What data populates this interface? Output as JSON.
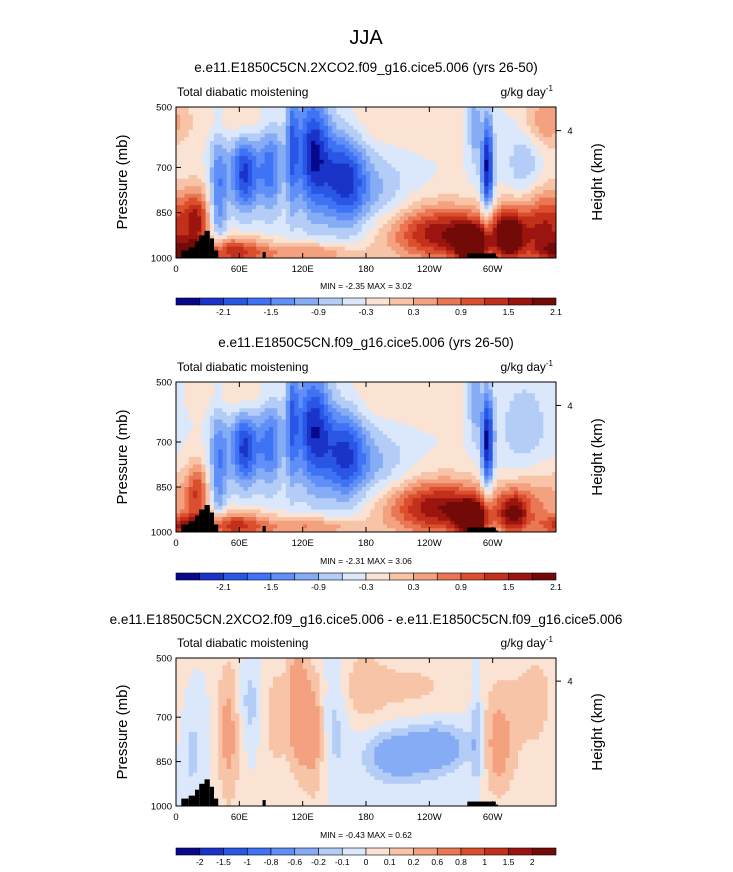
{
  "figure_title": "JJA",
  "chart_data": [
    {
      "type": "heatmap",
      "title": "e.e11.E1850C5CN.2XCO2.f09_g16.cice5.006 (yrs 26-50)",
      "left_label": "Total diabatic moistening",
      "units": "g/kg day",
      "units_exponent": "-1",
      "ylabel": "Pressure (mb)",
      "ylabel_right": "Height (km)",
      "right_ticks": [
        {
          "value": 4,
          "label": "4"
        }
      ],
      "x_ticks": [
        "0",
        "60E",
        "120E",
        "180",
        "120W",
        "60W"
      ],
      "x_tick_values": [
        0,
        60,
        120,
        180,
        240,
        300
      ],
      "xlim": [
        0,
        360
      ],
      "y_ticks": [
        "500",
        "700",
        "850",
        "1000"
      ],
      "y_tick_values": [
        500,
        700,
        850,
        1000
      ],
      "ylim": [
        500,
        1000
      ],
      "stats": "MIN = -2.35   MAX =   3.02",
      "colorbar_labels": [
        "-2.1",
        "-1.5",
        "-0.9",
        "-0.3",
        "0.3",
        "0.9",
        "1.5",
        "2.1"
      ],
      "colorbar_levels": [
        -2.1,
        -1.8,
        -1.5,
        -1.2,
        -0.9,
        -0.6,
        -0.3,
        0,
        0.3,
        0.6,
        0.9,
        1.2,
        1.5,
        1.8,
        2.1
      ],
      "max_abs": 2.4,
      "features": [
        {
          "lon": 20,
          "p": 870,
          "sx": 8,
          "sy": 70,
          "v": 1.3
        },
        {
          "lon": 10,
          "p": 980,
          "sx": 18,
          "sy": 25,
          "v": 1.4
        },
        {
          "lon": 40,
          "p": 780,
          "sx": 6,
          "sy": 150,
          "v": -1.2
        },
        {
          "lon": 65,
          "p": 720,
          "sx": 10,
          "sy": 90,
          "v": -1.9
        },
        {
          "lon": 90,
          "p": 700,
          "sx": 8,
          "sy": 110,
          "v": -1.3
        },
        {
          "lon": 110,
          "p": 620,
          "sx": 4,
          "sy": 160,
          "v": -1.2
        },
        {
          "lon": 130,
          "p": 650,
          "sx": 12,
          "sy": 140,
          "v": -2.1
        },
        {
          "lon": 160,
          "p": 740,
          "sx": 14,
          "sy": 110,
          "v": -1.8
        },
        {
          "lon": 190,
          "p": 780,
          "sx": 22,
          "sy": 90,
          "v": -0.6
        },
        {
          "lon": 55,
          "p": 980,
          "sx": 25,
          "sy": 35,
          "v": 1.6
        },
        {
          "lon": 130,
          "p": 985,
          "sx": 30,
          "sy": 25,
          "v": 1.0
        },
        {
          "lon": 255,
          "p": 920,
          "sx": 38,
          "sy": 65,
          "v": 2.1
        },
        {
          "lon": 280,
          "p": 960,
          "sx": 10,
          "sy": 40,
          "v": 2.6
        },
        {
          "lon": 283,
          "p": 560,
          "sx": 4,
          "sy": 90,
          "v": -0.9
        },
        {
          "lon": 295,
          "p": 700,
          "sx": 4,
          "sy": 120,
          "v": -2.2
        },
        {
          "lon": 315,
          "p": 930,
          "sx": 10,
          "sy": 60,
          "v": 2.0
        },
        {
          "lon": 350,
          "p": 900,
          "sx": 22,
          "sy": 90,
          "v": 1.8
        },
        {
          "lon": 330,
          "p": 700,
          "sx": 12,
          "sy": 100,
          "v": -0.6
        },
        {
          "lon": 60,
          "p": 550,
          "sx": 25,
          "sy": 50,
          "v": 0.4
        },
        {
          "lon": 200,
          "p": 550,
          "sx": 40,
          "sy": 60,
          "v": 0.3
        },
        {
          "lon": 350,
          "p": 550,
          "sx": 15,
          "sy": 60,
          "v": 0.9
        }
      ]
    },
    {
      "type": "heatmap",
      "title": "e.e11.E1850C5CN.f09_g16.cice5.006 (yrs 26-50)",
      "left_label": "Total diabatic moistening",
      "units": "g/kg day",
      "units_exponent": "-1",
      "ylabel": "Pressure (mb)",
      "ylabel_right": "Height (km)",
      "right_ticks": [
        {
          "value": 4,
          "label": "4"
        }
      ],
      "x_ticks": [
        "0",
        "60E",
        "120E",
        "180",
        "120W",
        "60W"
      ],
      "x_tick_values": [
        0,
        60,
        120,
        180,
        240,
        300
      ],
      "xlim": [
        0,
        360
      ],
      "y_ticks": [
        "500",
        "700",
        "850",
        "1000"
      ],
      "y_tick_values": [
        500,
        700,
        850,
        1000
      ],
      "ylim": [
        500,
        1000
      ],
      "stats": "MIN = -2.31   MAX =   3.06",
      "colorbar_labels": [
        "-2.1",
        "-1.5",
        "-0.9",
        "-0.3",
        "0.3",
        "0.9",
        "1.5",
        "2.1"
      ],
      "colorbar_levels": [
        -2.1,
        -1.8,
        -1.5,
        -1.2,
        -0.9,
        -0.6,
        -0.3,
        0,
        0.3,
        0.6,
        0.9,
        1.2,
        1.5,
        1.8,
        2.1
      ],
      "max_abs": 2.4,
      "features": [
        {
          "lon": 20,
          "p": 870,
          "sx": 8,
          "sy": 70,
          "v": 1.3
        },
        {
          "lon": 10,
          "p": 980,
          "sx": 18,
          "sy": 25,
          "v": 1.4
        },
        {
          "lon": 40,
          "p": 780,
          "sx": 6,
          "sy": 150,
          "v": -1.2
        },
        {
          "lon": 65,
          "p": 720,
          "sx": 10,
          "sy": 90,
          "v": -1.9
        },
        {
          "lon": 90,
          "p": 700,
          "sx": 8,
          "sy": 110,
          "v": -1.3
        },
        {
          "lon": 110,
          "p": 620,
          "sx": 4,
          "sy": 160,
          "v": -1.2
        },
        {
          "lon": 130,
          "p": 650,
          "sx": 12,
          "sy": 140,
          "v": -2.0
        },
        {
          "lon": 160,
          "p": 740,
          "sx": 14,
          "sy": 110,
          "v": -1.7
        },
        {
          "lon": 190,
          "p": 780,
          "sx": 22,
          "sy": 90,
          "v": -0.6
        },
        {
          "lon": 55,
          "p": 980,
          "sx": 25,
          "sy": 35,
          "v": 1.6
        },
        {
          "lon": 130,
          "p": 985,
          "sx": 30,
          "sy": 25,
          "v": 1.0
        },
        {
          "lon": 250,
          "p": 920,
          "sx": 38,
          "sy": 65,
          "v": 2.1
        },
        {
          "lon": 280,
          "p": 960,
          "sx": 10,
          "sy": 40,
          "v": 2.6
        },
        {
          "lon": 283,
          "p": 560,
          "sx": 4,
          "sy": 90,
          "v": -0.9
        },
        {
          "lon": 295,
          "p": 700,
          "sx": 4,
          "sy": 120,
          "v": -2.2
        },
        {
          "lon": 320,
          "p": 940,
          "sx": 10,
          "sy": 50,
          "v": 1.7
        },
        {
          "lon": 345,
          "p": 900,
          "sx": 22,
          "sy": 80,
          "v": 0.8
        },
        {
          "lon": 330,
          "p": 650,
          "sx": 18,
          "sy": 120,
          "v": -0.5
        },
        {
          "lon": 60,
          "p": 550,
          "sx": 25,
          "sy": 50,
          "v": 0.4
        },
        {
          "lon": 200,
          "p": 550,
          "sx": 40,
          "sy": 60,
          "v": 0.3
        }
      ]
    },
    {
      "type": "heatmap",
      "title": "e.e11.E1850C5CN.2XCO2.f09_g16.cice5.006 - e.e11.E1850C5CN.f09_g16.cice5.006",
      "left_label": "Total diabatic moistening",
      "units": "g/kg day",
      "units_exponent": "-1",
      "ylabel": "Pressure (mb)",
      "ylabel_right": "Height (km)",
      "right_ticks": [
        {
          "value": 4,
          "label": "4"
        }
      ],
      "x_ticks": [
        "0",
        "60E",
        "120E",
        "180",
        "120W",
        "60W"
      ],
      "x_tick_values": [
        0,
        60,
        120,
        180,
        240,
        300
      ],
      "xlim": [
        0,
        360
      ],
      "y_ticks": [
        "500",
        "700",
        "850",
        "1000"
      ],
      "y_tick_values": [
        500,
        700,
        850,
        1000
      ],
      "ylim": [
        500,
        1000
      ],
      "stats": "MIN = -0.43   MAX =   0.62",
      "colorbar_labels": [
        "-2",
        "-1.5",
        "-1",
        "-0.8",
        "-0.6",
        "-0.2",
        "-0.1",
        "0",
        "0.1",
        "0.2",
        "0.6",
        "0.8",
        "1",
        "1.5",
        "2"
      ],
      "colorbar_levels": [
        -2,
        -1.5,
        -1,
        -0.8,
        -0.6,
        -0.2,
        -0.1,
        0,
        0.1,
        0.2,
        0.6,
        0.8,
        1,
        1.5,
        2
      ],
      "max_abs": 2.2,
      "features": [
        {
          "lon": 15,
          "p": 800,
          "sx": 10,
          "sy": 150,
          "v": -0.15
        },
        {
          "lon": 50,
          "p": 750,
          "sx": 8,
          "sy": 180,
          "v": 0.25
        },
        {
          "lon": 70,
          "p": 650,
          "sx": 8,
          "sy": 100,
          "v": -0.15
        },
        {
          "lon": 95,
          "p": 700,
          "sx": 10,
          "sy": 150,
          "v": 0.15
        },
        {
          "lon": 115,
          "p": 650,
          "sx": 6,
          "sy": 150,
          "v": 0.35
        },
        {
          "lon": 130,
          "p": 750,
          "sx": 8,
          "sy": 150,
          "v": 0.3
        },
        {
          "lon": 150,
          "p": 700,
          "sx": 10,
          "sy": 150,
          "v": -0.15
        },
        {
          "lon": 175,
          "p": 600,
          "sx": 15,
          "sy": 100,
          "v": 0.12
        },
        {
          "lon": 210,
          "p": 830,
          "sx": 22,
          "sy": 60,
          "v": -0.35
        },
        {
          "lon": 250,
          "p": 800,
          "sx": 20,
          "sy": 60,
          "v": -0.3
        },
        {
          "lon": 285,
          "p": 750,
          "sx": 4,
          "sy": 150,
          "v": -0.2
        },
        {
          "lon": 305,
          "p": 800,
          "sx": 10,
          "sy": 120,
          "v": 0.25
        },
        {
          "lon": 340,
          "p": 650,
          "sx": 25,
          "sy": 200,
          "v": 0.12
        },
        {
          "lon": 220,
          "p": 600,
          "sx": 40,
          "sy": 80,
          "v": 0.12
        }
      ]
    }
  ]
}
